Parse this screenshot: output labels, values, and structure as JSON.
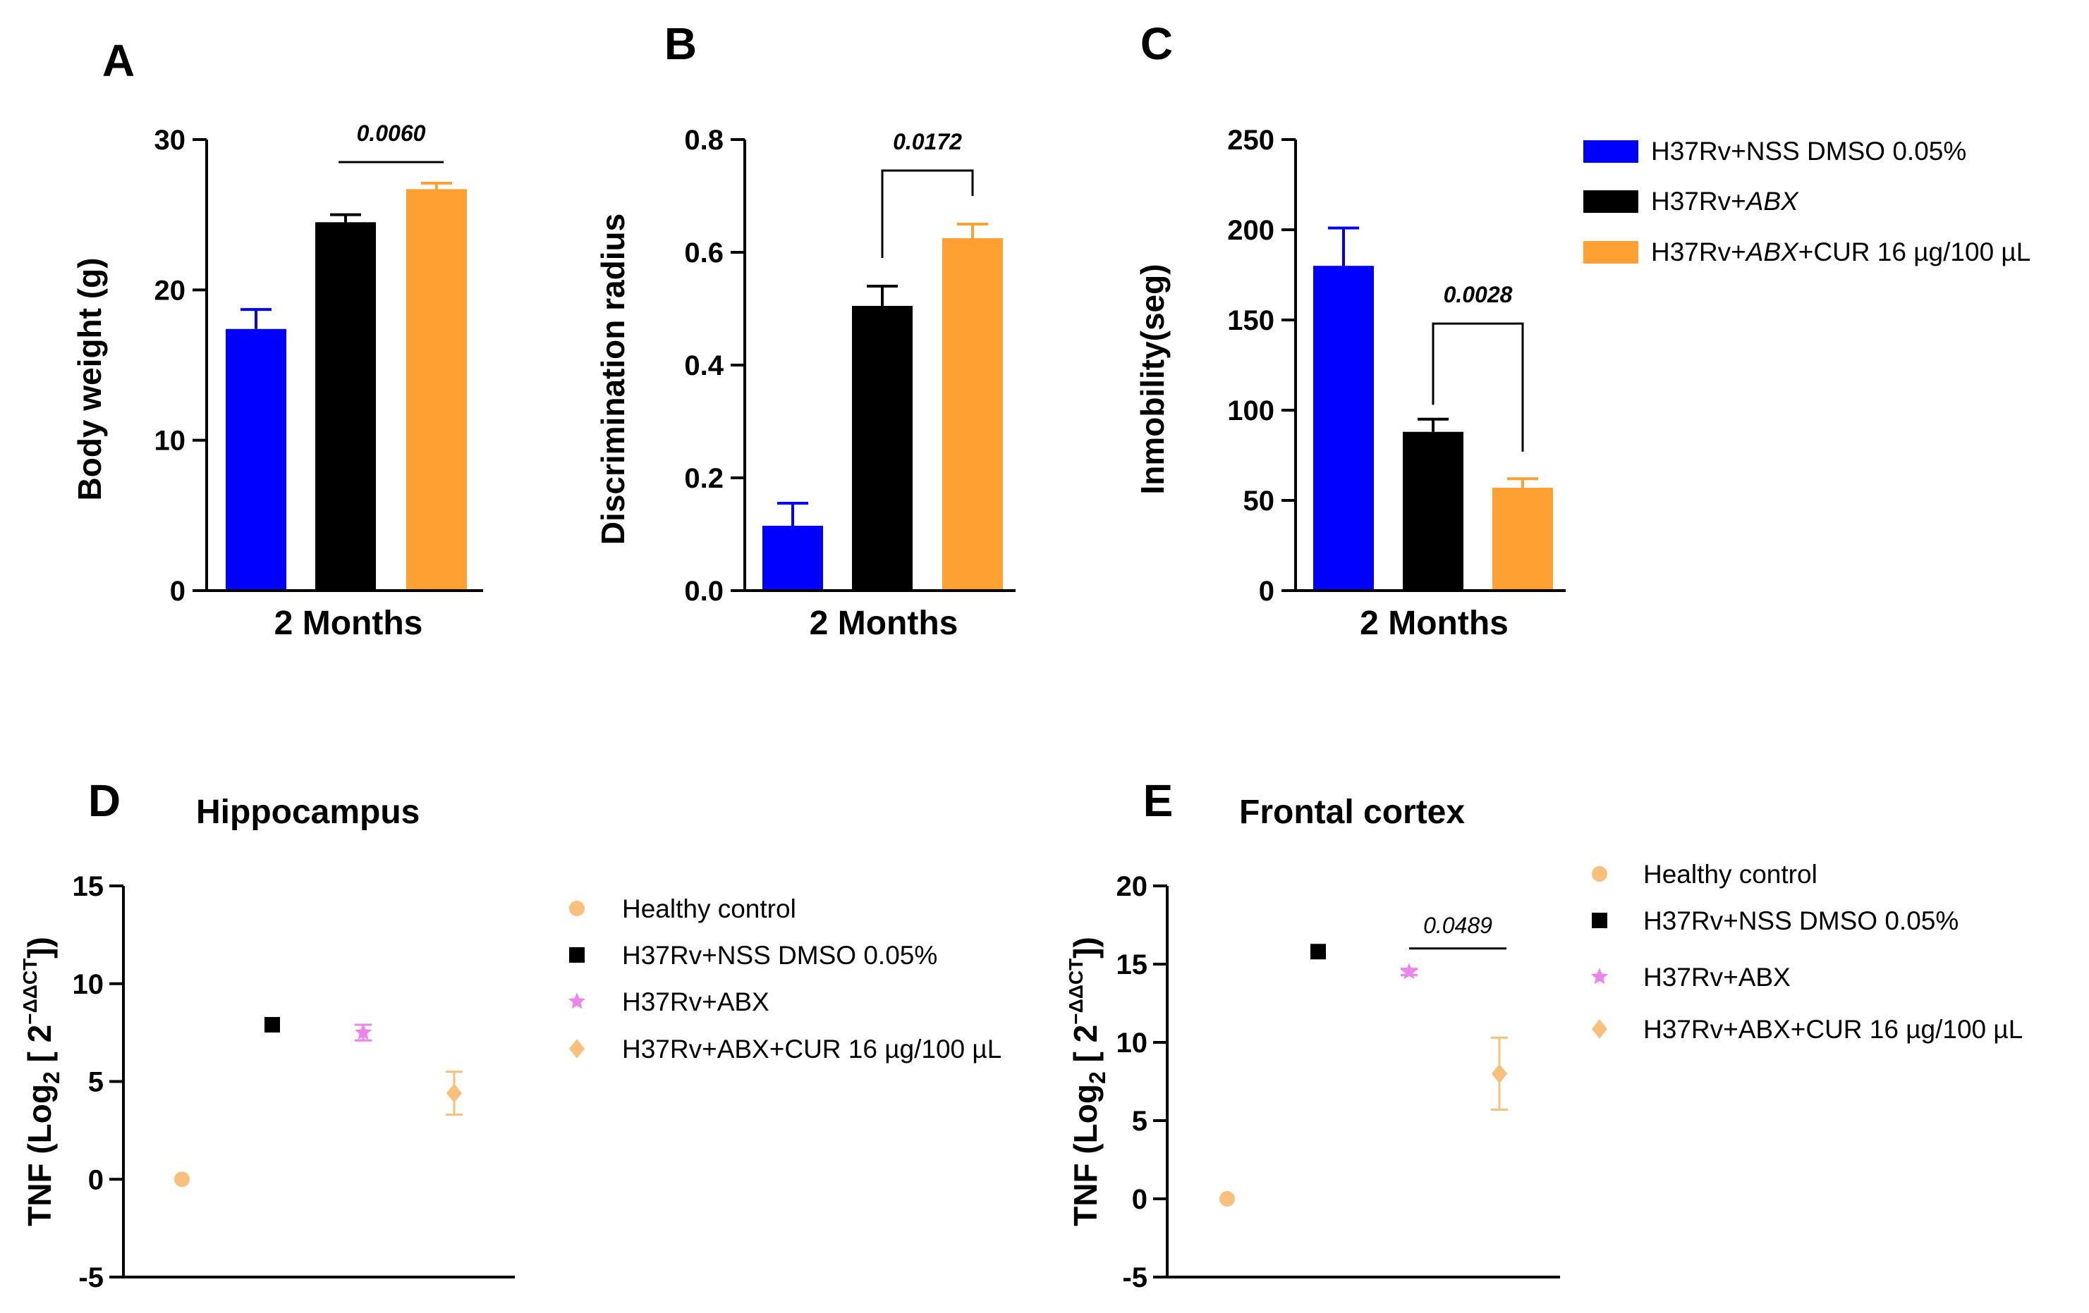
{
  "chart_data": [
    {
      "panel": "A",
      "type": "bar",
      "title": "",
      "xlabel": "2 Months",
      "ylabel": "Body weight (g)",
      "ylim": [
        0,
        30
      ],
      "yticks": [
        0,
        10,
        20,
        30
      ],
      "categories": [
        "H37Rv+NSS DMSO 0.05%",
        "H37Rv+ABX",
        "H37Rv+ABX+CUR 16 µg/100 µL"
      ],
      "values": [
        17.4,
        24.5,
        26.7
      ],
      "errors": [
        1.3,
        0.5,
        0.4
      ],
      "colors": [
        "#0000ff",
        "#000000",
        "#ffa033"
      ],
      "comparison": {
        "from": 1,
        "to": 2,
        "p": "0.0060",
        "style": "line",
        "y": 28.5
      }
    },
    {
      "panel": "B",
      "type": "bar",
      "title": "",
      "xlabel": "2 Months",
      "ylabel": "Discrimination radius",
      "ylim": [
        0,
        0.8
      ],
      "yticks": [
        "0.0",
        "0.2",
        "0.4",
        "0.6",
        "0.8"
      ],
      "categories": [
        "H37Rv+NSS DMSO 0.05%",
        "H37Rv+ABX",
        "H37Rv+ABX+CUR 16 µg/100 µL"
      ],
      "values": [
        0.115,
        0.505,
        0.625
      ],
      "errors": [
        0.04,
        0.035,
        0.025
      ],
      "colors": [
        "#0000ff",
        "#000000",
        "#ffa033"
      ],
      "comparison": {
        "from": 1,
        "to": 2,
        "p": "0.0172",
        "style": "bracket",
        "y": 0.745,
        "leg_left": 0.59,
        "leg_right": 0.7
      }
    },
    {
      "panel": "C",
      "type": "bar",
      "title": "",
      "xlabel": "2 Months",
      "ylabel": "Inmobility(seg)",
      "ylim": [
        0,
        250
      ],
      "yticks": [
        0,
        50,
        100,
        150,
        200,
        250
      ],
      "categories": [
        "H37Rv+NSS DMSO 0.05%",
        "H37Rv+ABX",
        "H37Rv+ABX+CUR 16 µg/100 µL"
      ],
      "values": [
        180,
        88,
        57
      ],
      "errors": [
        21,
        7,
        5
      ],
      "colors": [
        "#0000ff",
        "#000000",
        "#ffa033"
      ],
      "comparison": {
        "from": 1,
        "to": 2,
        "p": "0.0028",
        "style": "bracket",
        "y": 148,
        "leg_left": 103,
        "leg_right": 77
      }
    },
    {
      "panel": "D",
      "type": "scatter",
      "title": "Hippocampus",
      "xlabel": "",
      "ylabel": "TNF (Log2 [ 2−ΔΔCT])",
      "ylim": [
        -5,
        15
      ],
      "yticks": [
        -5,
        0,
        5,
        10,
        15
      ],
      "groups": [
        "Healthy control",
        "H37Rv+NSS DMSO 0.05%",
        "H37Rv+ABX",
        "H37Rv+ABX+CUR 16 µg/100 µL"
      ],
      "values": [
        0.0,
        7.9,
        7.5,
        4.4
      ],
      "errors": [
        0,
        0,
        0.4,
        1.1
      ],
      "markers": [
        "circle",
        "square",
        "star",
        "diamond"
      ],
      "colors": [
        "#f8c07a",
        "#000000",
        "#ee82ee",
        "#f8c07a"
      ]
    },
    {
      "panel": "E",
      "type": "scatter",
      "title": "Frontal cortex",
      "xlabel": "",
      "ylabel": "TNF (Log2 [ 2−ΔΔCT])",
      "ylim": [
        -5,
        20
      ],
      "yticks": [
        -5,
        0,
        5,
        10,
        15,
        20
      ],
      "groups": [
        "Healthy control",
        "H37Rv+NSS DMSO 0.05%",
        "H37Rv+ABX",
        "H37Rv+ABX+CUR 16 µg/100 µL"
      ],
      "values": [
        0.0,
        15.8,
        14.5,
        8.0
      ],
      "errors": [
        0,
        0,
        0.2,
        2.3
      ],
      "markers": [
        "circle",
        "square",
        "star",
        "diamond"
      ],
      "colors": [
        "#f8c07a",
        "#000000",
        "#ee82ee",
        "#f8c07a"
      ],
      "comparison": {
        "from": 2,
        "to": 3,
        "p": "0.0489",
        "style": "line",
        "y": 16.0
      }
    }
  ],
  "legend_top": {
    "entries": [
      {
        "label": "H37Rv+NSS DMSO 0.05%",
        "color": "#0000ff"
      },
      {
        "pre": "H37Rv+",
        "em": "ABX",
        "post": "",
        "color": "#000000"
      },
      {
        "pre": "H37Rv+",
        "em": "ABX",
        "post": "+CUR 16 µg/100 µL",
        "color": "#ffa033"
      }
    ]
  },
  "legend_d": {
    "entries": [
      {
        "label": "Healthy control",
        "marker": "circle",
        "color": "#f8c07a"
      },
      {
        "label": "H37Rv+NSS DMSO 0.05%",
        "marker": "square",
        "color": "#000000"
      },
      {
        "label": "H37Rv+ABX",
        "marker": "star",
        "color": "#ee82ee"
      },
      {
        "label": "H37Rv+ABX+CUR 16 µg/100 µL",
        "marker": "diamond",
        "color": "#f8c07a"
      }
    ]
  },
  "legend_e": {
    "entries": [
      {
        "label": "Healthy control",
        "marker": "circle",
        "color": "#f8c07a"
      },
      {
        "label": "H37Rv+NSS DMSO 0.05%",
        "marker": "square",
        "color": "#000000"
      },
      {
        "label": "H37Rv+ABX",
        "marker": "star",
        "color": "#ee82ee"
      },
      {
        "label": "H37Rv+ABX+CUR 16 µg/100 µL",
        "marker": "diamond",
        "color": "#f8c07a"
      }
    ]
  }
}
